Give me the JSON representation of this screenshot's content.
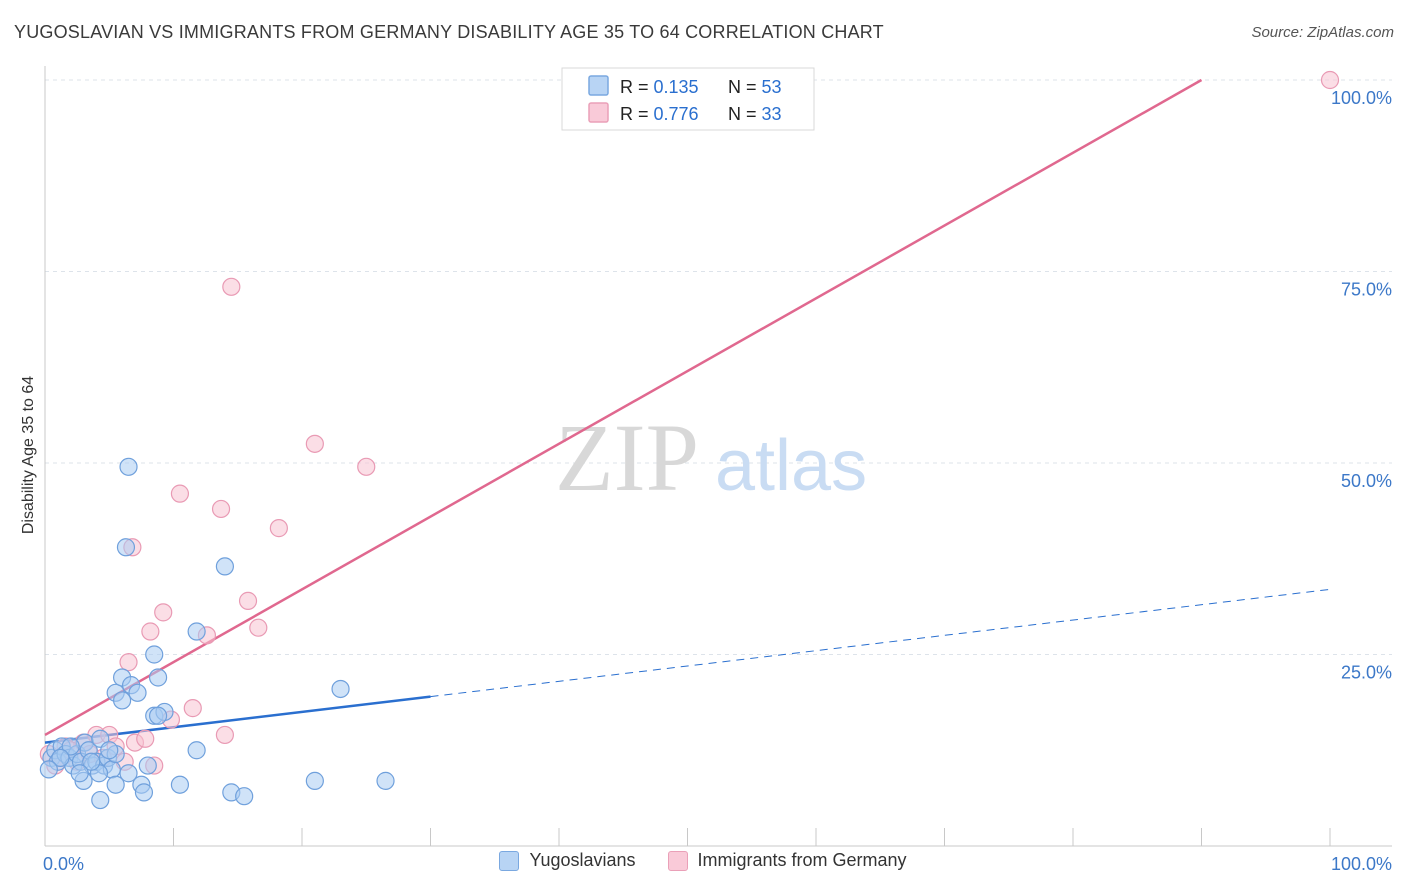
{
  "title": "YUGOSLAVIAN VS IMMIGRANTS FROM GERMANY DISABILITY AGE 35 TO 64 CORRELATION CHART",
  "source": "Source: ZipAtlas.com",
  "watermark": {
    "zip": "ZIP",
    "atlas": "atlas"
  },
  "colors": {
    "blue_fill": "#aaccf2",
    "blue_stroke": "#6fa0dc",
    "blue_line": "#2a6fcf",
    "pink_fill": "#f7c2d2",
    "pink_stroke": "#e99ab4",
    "pink_line": "#e0688f",
    "axis_text": "#3c78c8",
    "grid": "#dde3ea"
  },
  "legend_top": [
    {
      "r_label": "R = ",
      "r_value": "0.135",
      "n_label": "N = ",
      "n_value": "53"
    },
    {
      "r_label": "R = ",
      "r_value": "0.776",
      "n_label": "N = ",
      "n_value": "33"
    }
  ],
  "legend_bottom": [
    "Yugoslavians",
    "Immigrants from Germany"
  ],
  "chart_data": {
    "type": "scatter",
    "title": "YUGOSLAVIAN VS IMMIGRANTS FROM GERMANY DISABILITY AGE 35 TO 64 CORRELATION CHART",
    "xlabel": "",
    "ylabel": "Disability Age 35 to 64",
    "xlim": [
      0,
      100
    ],
    "ylim": [
      0,
      100
    ],
    "x_tick_labels": [
      "0.0%",
      "100.0%"
    ],
    "y_tick_labels": [
      "25.0%",
      "50.0%",
      "75.0%",
      "100.0%"
    ],
    "y_tick_values": [
      25,
      50,
      75,
      100
    ],
    "series": [
      {
        "name": "Yugoslavians",
        "R": 0.135,
        "N": 53,
        "trend": {
          "x0": 0,
          "y0": 13.5,
          "x1": 30,
          "y1": 19.5,
          "dashed_to_x": 100,
          "dashed_to_y": 33.5
        },
        "points": [
          [
            0.5,
            11.5
          ],
          [
            0.8,
            12.5
          ],
          [
            1.0,
            11.0
          ],
          [
            1.3,
            13.0
          ],
          [
            1.6,
            12.0
          ],
          [
            1.9,
            11.5
          ],
          [
            2.2,
            10.5
          ],
          [
            2.5,
            12.0
          ],
          [
            2.8,
            11.0
          ],
          [
            3.1,
            13.5
          ],
          [
            3.4,
            12.5
          ],
          [
            3.7,
            10.5
          ],
          [
            4.0,
            11.0
          ],
          [
            4.3,
            14.0
          ],
          [
            4.6,
            10.5
          ],
          [
            4.9,
            11.5
          ],
          [
            5.2,
            10.0
          ],
          [
            5.5,
            12.0
          ],
          [
            3.0,
            8.5
          ],
          [
            4.2,
            9.5
          ],
          [
            5.5,
            8.0
          ],
          [
            4.3,
            6.0
          ],
          [
            6.5,
            9.5
          ],
          [
            7.5,
            8.0
          ],
          [
            7.7,
            7.0
          ],
          [
            8.0,
            10.5
          ],
          [
            10.5,
            8.0
          ],
          [
            14.5,
            7.0
          ],
          [
            15.5,
            6.5
          ],
          [
            21.0,
            8.5
          ],
          [
            26.5,
            8.5
          ],
          [
            5.5,
            20.0
          ],
          [
            6.0,
            19.0
          ],
          [
            6.0,
            22.0
          ],
          [
            6.7,
            21.0
          ],
          [
            7.2,
            20.0
          ],
          [
            8.5,
            17.0
          ],
          [
            8.8,
            22.0
          ],
          [
            9.3,
            17.5
          ],
          [
            8.8,
            17.0
          ],
          [
            8.5,
            25.0
          ],
          [
            11.8,
            28.0
          ],
          [
            11.8,
            12.5
          ],
          [
            6.5,
            49.5
          ],
          [
            6.3,
            39.0
          ],
          [
            14.0,
            36.5
          ],
          [
            23.0,
            20.5
          ],
          [
            2.0,
            13.0
          ],
          [
            1.2,
            11.5
          ],
          [
            0.3,
            10.0
          ],
          [
            3.6,
            11.0
          ],
          [
            5.0,
            12.5
          ],
          [
            2.7,
            9.5
          ]
        ]
      },
      {
        "name": "Immigrants from Germany",
        "R": 0.776,
        "N": 33,
        "trend": {
          "x0": 0,
          "y0": 14.5,
          "x1": 90,
          "y1": 100
        },
        "points": [
          [
            0.3,
            12.0
          ],
          [
            0.8,
            10.5
          ],
          [
            1.2,
            11.5
          ],
          [
            1.6,
            13.0
          ],
          [
            2.0,
            12.5
          ],
          [
            2.5,
            11.0
          ],
          [
            3.0,
            13.5
          ],
          [
            3.5,
            12.0
          ],
          [
            4.0,
            14.5
          ],
          [
            4.5,
            11.5
          ],
          [
            5.0,
            14.5
          ],
          [
            5.5,
            13.0
          ],
          [
            6.2,
            11.0
          ],
          [
            7.0,
            13.5
          ],
          [
            7.8,
            14.0
          ],
          [
            8.5,
            10.5
          ],
          [
            9.8,
            16.5
          ],
          [
            11.5,
            18.0
          ],
          [
            14.0,
            14.5
          ],
          [
            6.5,
            24.0
          ],
          [
            8.2,
            28.0
          ],
          [
            9.2,
            30.5
          ],
          [
            12.6,
            27.5
          ],
          [
            15.8,
            32.0
          ],
          [
            16.6,
            28.5
          ],
          [
            6.8,
            39.0
          ],
          [
            10.5,
            46.0
          ],
          [
            13.7,
            44.0
          ],
          [
            18.2,
            41.5
          ],
          [
            21.0,
            52.5
          ],
          [
            25.0,
            49.5
          ],
          [
            14.5,
            73.0
          ],
          [
            100,
            100
          ]
        ]
      }
    ]
  }
}
